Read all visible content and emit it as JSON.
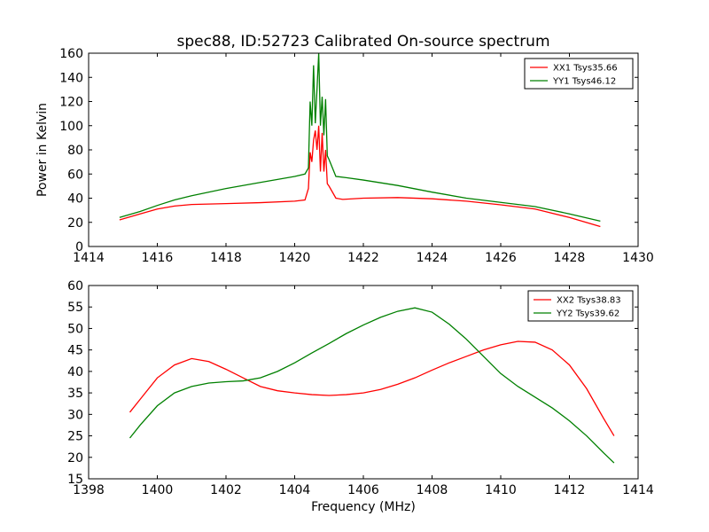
{
  "chart_data": [
    {
      "type": "line",
      "title": "spec88, ID:52723 Calibrated On-source spectrum",
      "xlabel": "",
      "ylabel": "Power in Kelvin",
      "xlim": [
        1414,
        1430
      ],
      "ylim": [
        0,
        160
      ],
      "xticks": [
        "1414",
        "1416",
        "1418",
        "1420",
        "1422",
        "1424",
        "1426",
        "1428",
        "1430"
      ],
      "yticks": [
        "0",
        "20",
        "40",
        "60",
        "80",
        "100",
        "120",
        "140",
        "160"
      ],
      "grid": false,
      "legend": "top-right",
      "series": [
        {
          "name": "XX1 Tsys35.66",
          "color": "#ff0000",
          "points": [
            [
              1414.9,
              22
            ],
            [
              1415.5,
              27
            ],
            [
              1416,
              31
            ],
            [
              1416.5,
              33.5
            ],
            [
              1417,
              34.8
            ],
            [
              1418,
              35.5
            ],
            [
              1419,
              36.3
            ],
            [
              1420,
              37.5
            ],
            [
              1420.3,
              38.5
            ],
            [
              1420.4,
              48
            ],
            [
              1420.45,
              78
            ],
            [
              1420.5,
              70
            ],
            [
              1420.55,
              88
            ],
            [
              1420.6,
              96
            ],
            [
              1420.65,
              80
            ],
            [
              1420.7,
              100
            ],
            [
              1420.75,
              62
            ],
            [
              1420.8,
              94
            ],
            [
              1420.85,
              62
            ],
            [
              1420.9,
              80
            ],
            [
              1420.95,
              52
            ],
            [
              1421,
              50
            ],
            [
              1421.2,
              40
            ],
            [
              1421.4,
              39
            ],
            [
              1422,
              40
            ],
            [
              1423,
              40.5
            ],
            [
              1424,
              39.5
            ],
            [
              1425,
              37.5
            ],
            [
              1426,
              34.5
            ],
            [
              1427,
              31
            ],
            [
              1428,
              24
            ],
            [
              1428.9,
              16.5
            ]
          ]
        },
        {
          "name": "YY1 Tsys46.12",
          "color": "#008000",
          "points": [
            [
              1414.9,
              24
            ],
            [
              1415.5,
              29
            ],
            [
              1416,
              34
            ],
            [
              1416.5,
              38.5
            ],
            [
              1417,
              42
            ],
            [
              1418,
              48
            ],
            [
              1419,
              53
            ],
            [
              1419.5,
              55.5
            ],
            [
              1420,
              58
            ],
            [
              1420.3,
              60
            ],
            [
              1420.4,
              65
            ],
            [
              1420.45,
              120
            ],
            [
              1420.5,
              100
            ],
            [
              1420.55,
              150
            ],
            [
              1420.6,
              102
            ],
            [
              1420.65,
              130
            ],
            [
              1420.7,
              160
            ],
            [
              1420.75,
              100
            ],
            [
              1420.8,
              124
            ],
            [
              1420.85,
              92
            ],
            [
              1420.9,
              122
            ],
            [
              1420.95,
              75
            ],
            [
              1421,
              72
            ],
            [
              1421.2,
              58
            ],
            [
              1421.5,
              57
            ],
            [
              1422,
              55
            ],
            [
              1423,
              50.5
            ],
            [
              1424,
              45
            ],
            [
              1425,
              40
            ],
            [
              1426,
              36.5
            ],
            [
              1427,
              33
            ],
            [
              1428,
              27
            ],
            [
              1428.9,
              21
            ]
          ]
        }
      ]
    },
    {
      "type": "line",
      "title": "",
      "xlabel": "Frequency (MHz)",
      "ylabel": "",
      "xlim": [
        1398,
        1414
      ],
      "ylim": [
        15,
        60
      ],
      "xticks": [
        "1398",
        "1400",
        "1402",
        "1404",
        "1406",
        "1408",
        "1410",
        "1412",
        "1414"
      ],
      "yticks": [
        "15",
        "20",
        "25",
        "30",
        "35",
        "40",
        "45",
        "50",
        "55",
        "60"
      ],
      "grid": false,
      "legend": "top-right",
      "series": [
        {
          "name": "XX2 Tsys38.83",
          "color": "#ff0000",
          "points": [
            [
              1399.2,
              30.5
            ],
            [
              1399.5,
              33.5
            ],
            [
              1400,
              38.5
            ],
            [
              1400.5,
              41.5
            ],
            [
              1401,
              43
            ],
            [
              1401.5,
              42.3
            ],
            [
              1402,
              40.5
            ],
            [
              1402.5,
              38.5
            ],
            [
              1403,
              36.5
            ],
            [
              1403.5,
              35.5
            ],
            [
              1404,
              35
            ],
            [
              1404.5,
              34.6
            ],
            [
              1405,
              34.4
            ],
            [
              1405.5,
              34.6
            ],
            [
              1406,
              35
            ],
            [
              1406.5,
              35.8
            ],
            [
              1407,
              37
            ],
            [
              1407.5,
              38.5
            ],
            [
              1408,
              40.3
            ],
            [
              1408.5,
              42
            ],
            [
              1409,
              43.5
            ],
            [
              1409.5,
              45
            ],
            [
              1410,
              46.2
            ],
            [
              1410.5,
              47
            ],
            [
              1411,
              46.8
            ],
            [
              1411.5,
              45
            ],
            [
              1412,
              41.5
            ],
            [
              1412.5,
              36
            ],
            [
              1413,
              29
            ],
            [
              1413.3,
              25
            ]
          ]
        },
        {
          "name": "YY2 Tsys39.62",
          "color": "#008000",
          "points": [
            [
              1399.2,
              24.5
            ],
            [
              1399.5,
              27.5
            ],
            [
              1400,
              32
            ],
            [
              1400.5,
              35
            ],
            [
              1401,
              36.5
            ],
            [
              1401.5,
              37.3
            ],
            [
              1402,
              37.6
            ],
            [
              1402.5,
              37.8
            ],
            [
              1403,
              38.5
            ],
            [
              1403.5,
              40
            ],
            [
              1404,
              42
            ],
            [
              1404.5,
              44.3
            ],
            [
              1405,
              46.5
            ],
            [
              1405.5,
              48.8
            ],
            [
              1406,
              50.8
            ],
            [
              1406.5,
              52.6
            ],
            [
              1407,
              54
            ],
            [
              1407.5,
              54.8
            ],
            [
              1408,
              53.8
            ],
            [
              1408.5,
              51
            ],
            [
              1409,
              47.5
            ],
            [
              1409.5,
              43.5
            ],
            [
              1410,
              39.5
            ],
            [
              1410.5,
              36.5
            ],
            [
              1411,
              34
            ],
            [
              1411.5,
              31.5
            ],
            [
              1412,
              28.5
            ],
            [
              1412.5,
              25
            ],
            [
              1413,
              21
            ],
            [
              1413.3,
              18.7
            ]
          ]
        }
      ]
    }
  ]
}
